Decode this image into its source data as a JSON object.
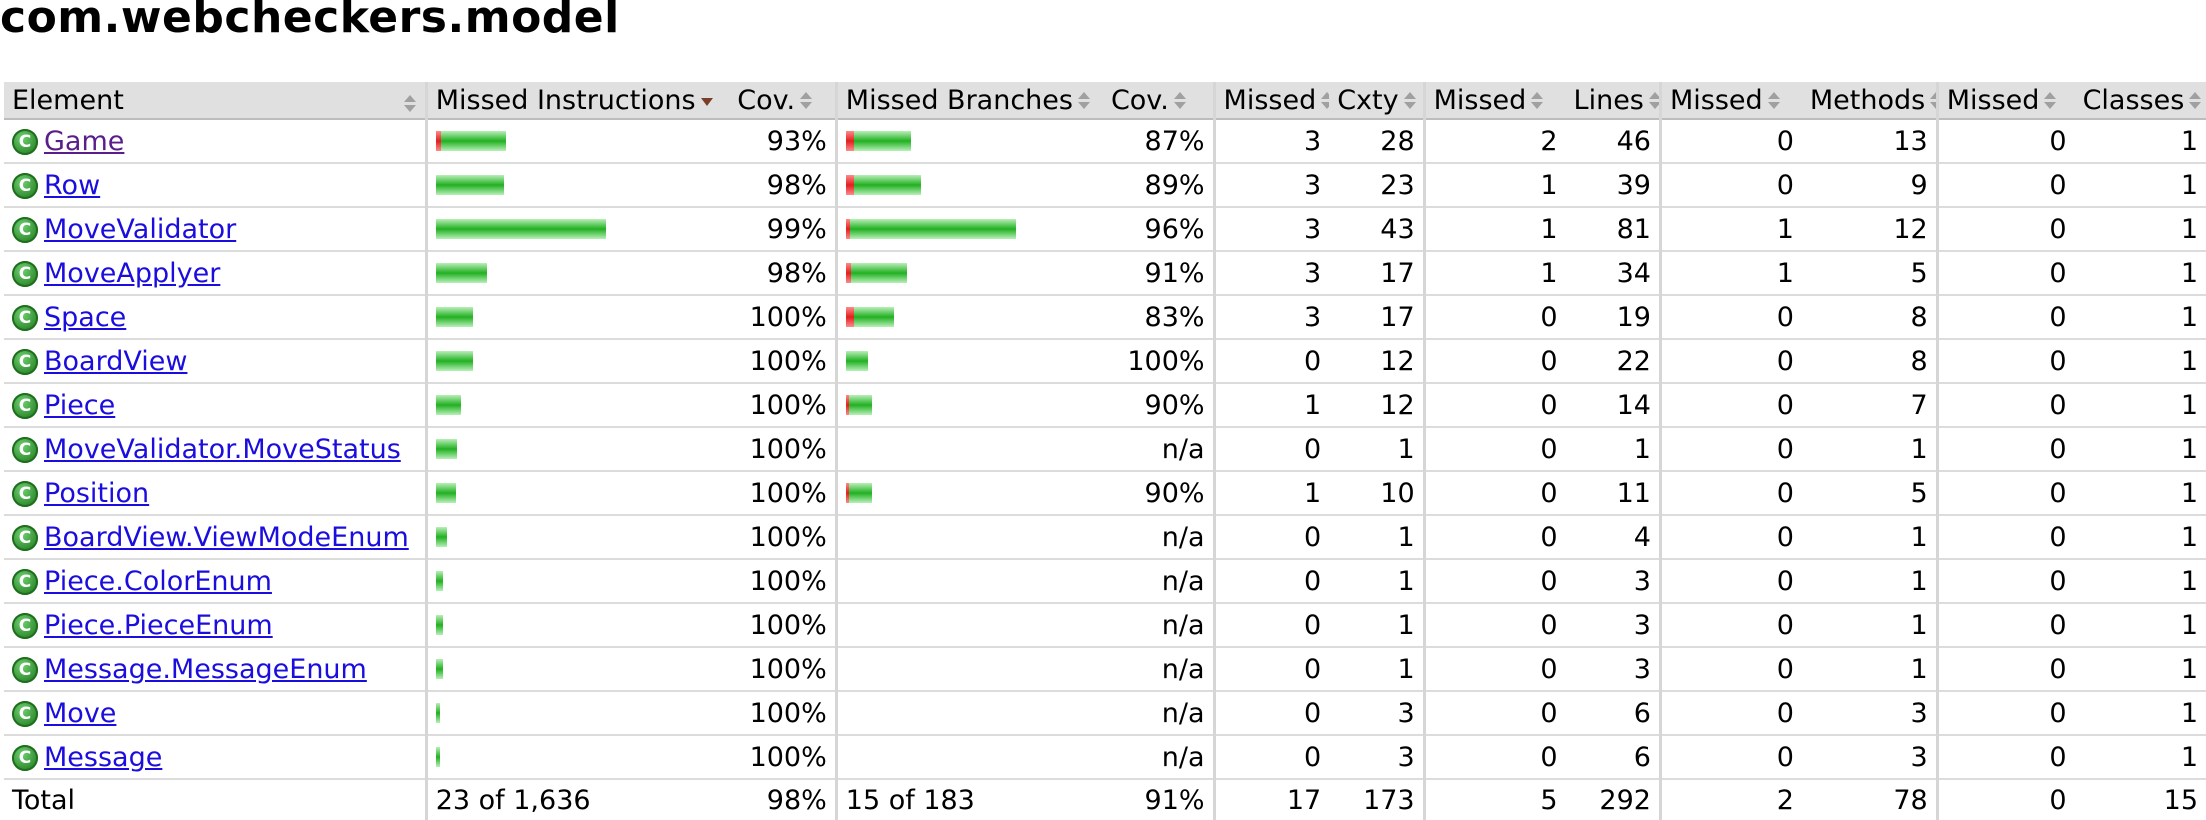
{
  "title": "com.webcheckers.model",
  "headers": {
    "element": "Element",
    "missed_instructions": "Missed Instructions",
    "cov_instructions": "Cov.",
    "missed_branches": "Missed Branches",
    "cov_branches": "Cov.",
    "missed_cxty": "Missed",
    "cxty": "Cxty",
    "missed_lines": "Missed",
    "lines": "Lines",
    "missed_methods": "Missed",
    "methods": "Methods",
    "missed_classes": "Missed",
    "classes": "Classes"
  },
  "colors": {
    "covered": "#22b022",
    "missed": "#e02020",
    "link": "#1a0ddd",
    "visited_link": "#5a1e8a",
    "header_bg": "#e0e0e0"
  },
  "icon": "class-icon",
  "rows": [
    {
      "name": "Game",
      "visited": true,
      "instr_bar": {
        "red": 5,
        "green": 65
      },
      "instr_cov": "93%",
      "branch_bar": {
        "red": 8,
        "green": 57
      },
      "branch_cov": "87%",
      "missed_cxty": "3",
      "cxty": "28",
      "missed_lines": "2",
      "lines": "46",
      "missed_methods": "0",
      "methods": "13",
      "missed_classes": "0",
      "classes": "1"
    },
    {
      "name": "Row",
      "visited": false,
      "instr_bar": {
        "red": 0,
        "green": 68
      },
      "instr_cov": "98%",
      "branch_bar": {
        "red": 8,
        "green": 67
      },
      "branch_cov": "89%",
      "missed_cxty": "3",
      "cxty": "23",
      "missed_lines": "1",
      "lines": "39",
      "missed_methods": "0",
      "methods": "9",
      "missed_classes": "0",
      "classes": "1"
    },
    {
      "name": "MoveValidator",
      "visited": false,
      "instr_bar": {
        "red": 0,
        "green": 170
      },
      "instr_cov": "99%",
      "branch_bar": {
        "red": 4,
        "green": 166
      },
      "branch_cov": "96%",
      "missed_cxty": "3",
      "cxty": "43",
      "missed_lines": "1",
      "lines": "81",
      "missed_methods": "1",
      "methods": "12",
      "missed_classes": "0",
      "classes": "1"
    },
    {
      "name": "MoveApplyer",
      "visited": false,
      "instr_bar": {
        "red": 0,
        "green": 51
      },
      "instr_cov": "98%",
      "branch_bar": {
        "red": 5,
        "green": 56
      },
      "branch_cov": "91%",
      "missed_cxty": "3",
      "cxty": "17",
      "missed_lines": "1",
      "lines": "34",
      "missed_methods": "1",
      "methods": "5",
      "missed_classes": "0",
      "classes": "1"
    },
    {
      "name": "Space",
      "visited": false,
      "instr_bar": {
        "red": 0,
        "green": 37
      },
      "instr_cov": "100%",
      "branch_bar": {
        "red": 8,
        "green": 40
      },
      "branch_cov": "83%",
      "missed_cxty": "3",
      "cxty": "17",
      "missed_lines": "0",
      "lines": "19",
      "missed_methods": "0",
      "methods": "8",
      "missed_classes": "0",
      "classes": "1"
    },
    {
      "name": "BoardView",
      "visited": false,
      "instr_bar": {
        "red": 0,
        "green": 37
      },
      "instr_cov": "100%",
      "branch_bar": {
        "red": 0,
        "green": 22
      },
      "branch_cov": "100%",
      "missed_cxty": "0",
      "cxty": "12",
      "missed_lines": "0",
      "lines": "22",
      "missed_methods": "0",
      "methods": "8",
      "missed_classes": "0",
      "classes": "1"
    },
    {
      "name": "Piece",
      "visited": false,
      "instr_bar": {
        "red": 0,
        "green": 25
      },
      "instr_cov": "100%",
      "branch_bar": {
        "red": 3,
        "green": 23
      },
      "branch_cov": "90%",
      "missed_cxty": "1",
      "cxty": "12",
      "missed_lines": "0",
      "lines": "14",
      "missed_methods": "0",
      "methods": "7",
      "missed_classes": "0",
      "classes": "1"
    },
    {
      "name": "MoveValidator.MoveStatus",
      "visited": false,
      "instr_bar": {
        "red": 0,
        "green": 21
      },
      "instr_cov": "100%",
      "branch_bar": null,
      "branch_cov": "n/a",
      "missed_cxty": "0",
      "cxty": "1",
      "missed_lines": "0",
      "lines": "1",
      "missed_methods": "0",
      "methods": "1",
      "missed_classes": "0",
      "classes": "1"
    },
    {
      "name": "Position",
      "visited": false,
      "instr_bar": {
        "red": 0,
        "green": 20
      },
      "instr_cov": "100%",
      "branch_bar": {
        "red": 3,
        "green": 23
      },
      "branch_cov": "90%",
      "missed_cxty": "1",
      "cxty": "10",
      "missed_lines": "0",
      "lines": "11",
      "missed_methods": "0",
      "methods": "5",
      "missed_classes": "0",
      "classes": "1"
    },
    {
      "name": "BoardView.ViewModeEnum",
      "visited": false,
      "instr_bar": {
        "red": 0,
        "green": 11
      },
      "instr_cov": "100%",
      "branch_bar": null,
      "branch_cov": "n/a",
      "missed_cxty": "0",
      "cxty": "1",
      "missed_lines": "0",
      "lines": "4",
      "missed_methods": "0",
      "methods": "1",
      "missed_classes": "0",
      "classes": "1"
    },
    {
      "name": "Piece.ColorEnum",
      "visited": false,
      "instr_bar": {
        "red": 0,
        "green": 7
      },
      "instr_cov": "100%",
      "branch_bar": null,
      "branch_cov": "n/a",
      "missed_cxty": "0",
      "cxty": "1",
      "missed_lines": "0",
      "lines": "3",
      "missed_methods": "0",
      "methods": "1",
      "missed_classes": "0",
      "classes": "1"
    },
    {
      "name": "Piece.PieceEnum",
      "visited": false,
      "instr_bar": {
        "red": 0,
        "green": 7
      },
      "instr_cov": "100%",
      "branch_bar": null,
      "branch_cov": "n/a",
      "missed_cxty": "0",
      "cxty": "1",
      "missed_lines": "0",
      "lines": "3",
      "missed_methods": "0",
      "methods": "1",
      "missed_classes": "0",
      "classes": "1"
    },
    {
      "name": "Message.MessageEnum",
      "visited": false,
      "instr_bar": {
        "red": 0,
        "green": 7
      },
      "instr_cov": "100%",
      "branch_bar": null,
      "branch_cov": "n/a",
      "missed_cxty": "0",
      "cxty": "1",
      "missed_lines": "0",
      "lines": "3",
      "missed_methods": "0",
      "methods": "1",
      "missed_classes": "0",
      "classes": "1"
    },
    {
      "name": "Move",
      "visited": false,
      "instr_bar": {
        "red": 0,
        "green": 4
      },
      "instr_cov": "100%",
      "branch_bar": null,
      "branch_cov": "n/a",
      "missed_cxty": "0",
      "cxty": "3",
      "missed_lines": "0",
      "lines": "6",
      "missed_methods": "0",
      "methods": "3",
      "missed_classes": "0",
      "classes": "1"
    },
    {
      "name": "Message",
      "visited": false,
      "instr_bar": {
        "red": 0,
        "green": 4
      },
      "instr_cov": "100%",
      "branch_bar": null,
      "branch_cov": "n/a",
      "missed_cxty": "0",
      "cxty": "3",
      "missed_lines": "0",
      "lines": "6",
      "missed_methods": "0",
      "methods": "3",
      "missed_classes": "0",
      "classes": "1"
    }
  ],
  "total": {
    "label": "Total",
    "missed_instructions": "23 of 1,636",
    "instr_cov": "98%",
    "missed_branches": "15 of 183",
    "branch_cov": "91%",
    "missed_cxty": "17",
    "cxty": "173",
    "missed_lines": "5",
    "lines": "292",
    "missed_methods": "2",
    "methods": "78",
    "missed_classes": "0",
    "classes": "15"
  }
}
